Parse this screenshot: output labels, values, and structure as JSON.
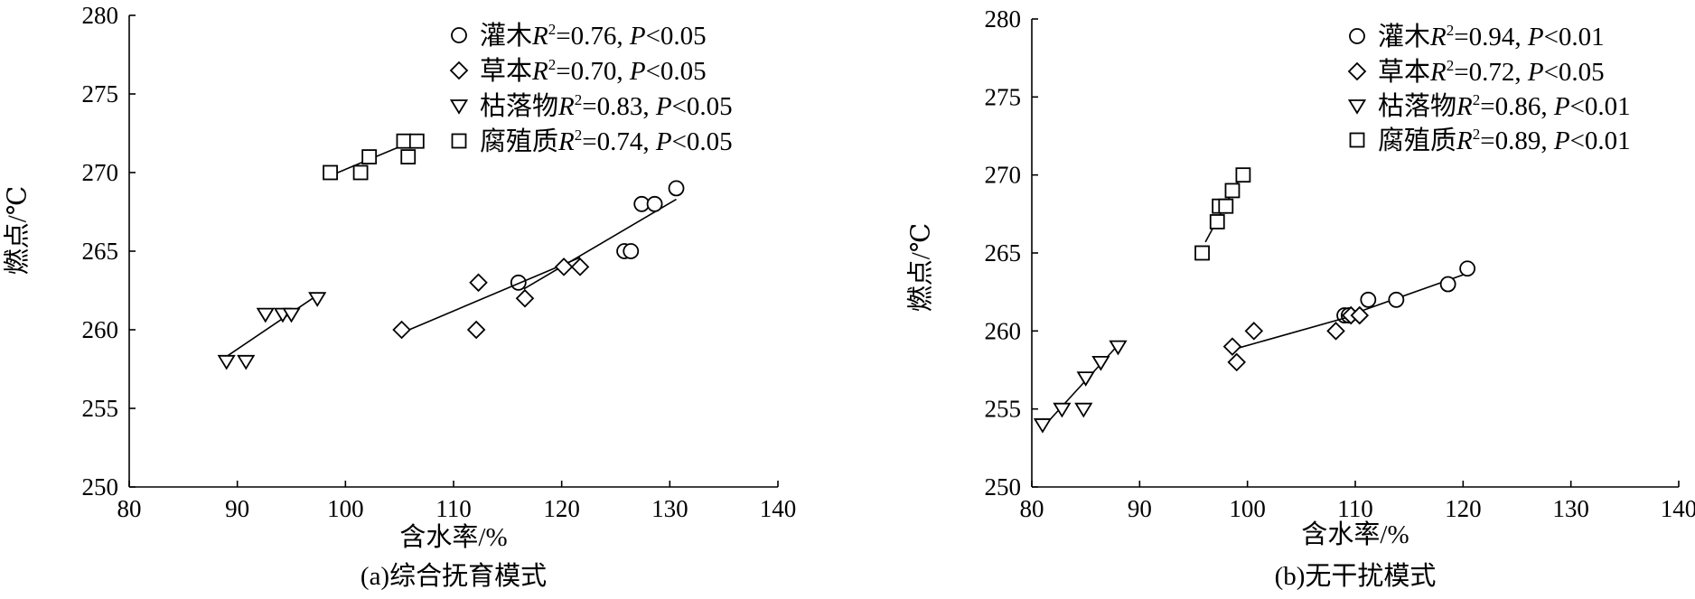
{
  "chart_data": [
    {
      "type": "scatter",
      "caption": "(a)综合抚育模式",
      "xlabel": "含水率/%",
      "ylabel": "燃点/℃",
      "xlim": [
        80,
        140
      ],
      "ylim": [
        250,
        280
      ],
      "xticks": [
        80,
        90,
        100,
        110,
        120,
        130,
        140
      ],
      "yticks": [
        250,
        255,
        260,
        265,
        270,
        275,
        280
      ],
      "legend_position": "top-right",
      "series": [
        {
          "name": "灌木",
          "marker": "circle",
          "r2": "0.76",
          "p": "<0.05",
          "points": [
            [
              116,
              263
            ],
            [
              125.8,
              265
            ],
            [
              126.4,
              265
            ],
            [
              127.4,
              268
            ],
            [
              128.6,
              268
            ],
            [
              130.6,
              269
            ]
          ],
          "fit": [
            [
              116.5,
              262.6
            ],
            [
              130.6,
              268.3
            ]
          ]
        },
        {
          "name": "草本",
          "marker": "diamond",
          "r2": "0.70",
          "p": "<0.05",
          "points": [
            [
              105.2,
              260
            ],
            [
              112.1,
              260
            ],
            [
              112.3,
              263
            ],
            [
              116.6,
              262
            ],
            [
              120.2,
              264
            ],
            [
              121.7,
              264
            ]
          ],
          "fit": [
            [
              105.2,
              259.8
            ],
            [
              121.7,
              264.6
            ]
          ]
        },
        {
          "name": "枯落物",
          "marker": "triangle",
          "r2": "0.83",
          "p": "<0.05",
          "points": [
            [
              89,
              258
            ],
            [
              90.8,
              258
            ],
            [
              92.6,
              261
            ],
            [
              94.2,
              261
            ],
            [
              95,
              261
            ],
            [
              97.4,
              262
            ]
          ],
          "fit": [
            [
              89,
              258.3
            ],
            [
              97.4,
              262.2
            ]
          ]
        },
        {
          "name": "腐殖质",
          "marker": "square",
          "r2": "0.74",
          "p": "<0.05",
          "points": [
            [
              98.6,
              270
            ],
            [
              101.4,
              270
            ],
            [
              102.2,
              271
            ],
            [
              105.4,
              272
            ],
            [
              105.8,
              271
            ],
            [
              106.6,
              272
            ]
          ],
          "fit": [
            [
              98.6,
              269.8
            ],
            [
              106.6,
              272.1
            ]
          ]
        }
      ]
    },
    {
      "type": "scatter",
      "caption": "(b)无干扰模式",
      "xlabel": "含水率/%",
      "ylabel": "燃点/℃",
      "xlim": [
        80,
        140
      ],
      "ylim": [
        250,
        280
      ],
      "xticks": [
        80,
        90,
        100,
        110,
        120,
        130,
        140
      ],
      "yticks": [
        250,
        255,
        260,
        265,
        270,
        275,
        280
      ],
      "legend_position": "top-right",
      "series": [
        {
          "name": "灌木",
          "marker": "circle",
          "r2": "0.94",
          "p": "<0.01",
          "points": [
            [
              109,
              261
            ],
            [
              109.4,
              261
            ],
            [
              111.2,
              262
            ],
            [
              113.8,
              262
            ],
            [
              118.6,
              263
            ],
            [
              120.4,
              264
            ]
          ],
          "fit": [
            [
              109,
              260.9
            ],
            [
              120.4,
              263.7
            ]
          ]
        },
        {
          "name": "草本",
          "marker": "diamond",
          "r2": "0.72",
          "p": "<0.05",
          "points": [
            [
              98.6,
              259
            ],
            [
              99,
              258
            ],
            [
              100.6,
              260
            ],
            [
              108.2,
              260
            ],
            [
              109.6,
              261
            ],
            [
              110.4,
              261
            ]
          ],
          "fit": [
            [
              98.6,
              258.8
            ],
            [
              110.4,
              261.1
            ]
          ]
        },
        {
          "name": "枯落物",
          "marker": "triangle",
          "r2": "0.86",
          "p": "<0.01",
          "points": [
            [
              81,
              254
            ],
            [
              82.8,
              255
            ],
            [
              84.8,
              255
            ],
            [
              85,
              257
            ],
            [
              86.4,
              258
            ],
            [
              88,
              259
            ]
          ],
          "fit": [
            [
              81,
              253.8
            ],
            [
              88,
              259.1
            ]
          ]
        },
        {
          "name": "腐殖质",
          "marker": "square",
          "r2": "0.89",
          "p": "<0.01",
          "points": [
            [
              95.8,
              265
            ],
            [
              97.2,
              267
            ],
            [
              97.4,
              268
            ],
            [
              98,
              268
            ],
            [
              98.6,
              269
            ],
            [
              99.6,
              270
            ]
          ],
          "fit": [
            [
              96.1,
              265.7
            ],
            [
              99.6,
              270.2
            ]
          ]
        }
      ]
    }
  ]
}
